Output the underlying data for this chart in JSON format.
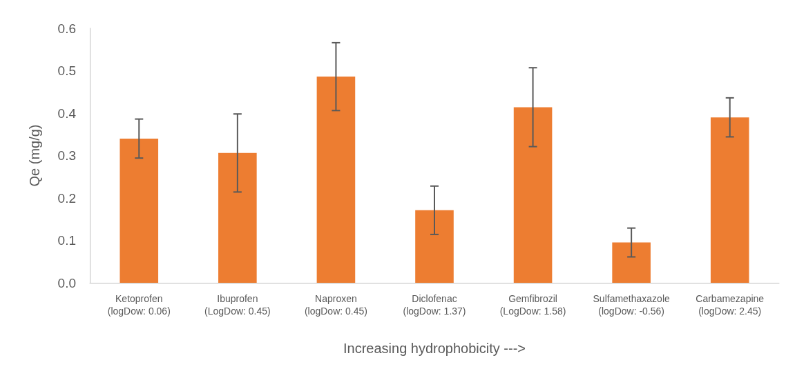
{
  "chart_data": {
    "type": "bar",
    "xlabel": "Increasing hydrophobicity --->",
    "ylabel": "Qe (mg/g)",
    "categories": [
      "Ketoprofen\n(logDow: 0.06)",
      "Ibuprofen\n(LogDow: 0.45)",
      "Naproxen\n(logDow: 0.45)",
      "Diclofenac\n(logDow: 1.37)",
      "Gemfibrozil\n(LogDow: 1.58)",
      "Sulfamethaxazole\n(logDow: -0.56)",
      "Carbamezapine\n(logDow: 2.45)"
    ],
    "values": [
      0.34,
      0.306,
      0.486,
      0.171,
      0.414,
      0.095,
      0.39
    ],
    "errors": [
      0.046,
      0.092,
      0.08,
      0.057,
      0.093,
      0.034,
      0.046
    ],
    "color": "#ed7d31",
    "ylim": [
      0,
      0.6
    ],
    "yticks": [
      {
        "value": 0,
        "label": "0.0"
      },
      0.1,
      0.2,
      0.3,
      0.4,
      0.5,
      0.6
    ],
    "grid": false
  }
}
